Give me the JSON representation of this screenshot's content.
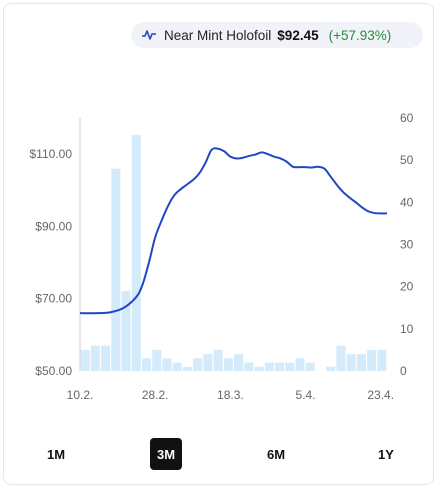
{
  "legend": {
    "label": "Near Mint Holofoil",
    "price": "$92.45",
    "change": "(+57.93%)",
    "icon": "line-chart-icon"
  },
  "range_tabs": [
    {
      "label": "1M",
      "active": false
    },
    {
      "label": "3M",
      "active": true
    },
    {
      "label": "6M",
      "active": false
    },
    {
      "label": "1Y",
      "active": false
    }
  ],
  "colors": {
    "line": "#2147c2",
    "bars": "#d3ebfa",
    "change_positive": "#2b8a3e",
    "active_tab": "#111111"
  },
  "chart_data": {
    "type": "line",
    "title": "",
    "xlabel": "",
    "ylabel": "",
    "x_tick_labels": [
      "10.2.",
      "28.2.",
      "18.3.",
      "5.4.",
      "23.4."
    ],
    "y_left": {
      "ticks": [
        "$50.00",
        "$70.00",
        "$90.00",
        "$110.00"
      ],
      "values": [
        50,
        70,
        90,
        110
      ],
      "range": [
        50,
        120
      ]
    },
    "y_right": {
      "ticks": [
        "0",
        "10",
        "20",
        "30",
        "40",
        "50",
        "60"
      ],
      "values": [
        0,
        10,
        20,
        30,
        40,
        50,
        60
      ],
      "range": [
        0,
        60
      ]
    },
    "series": [
      {
        "type": "line",
        "axis": "left",
        "points": [
          [
            0,
            66.0
          ],
          [
            3,
            66.0
          ],
          [
            5,
            66.3
          ],
          [
            7,
            67.5
          ],
          [
            9,
            70.5
          ],
          [
            10,
            74
          ],
          [
            11,
            80
          ],
          [
            12,
            87
          ],
          [
            13,
            91.5
          ],
          [
            14,
            95.5
          ],
          [
            15,
            98.5
          ],
          [
            16,
            100.2
          ],
          [
            17,
            101.5
          ],
          [
            18,
            102.8
          ],
          [
            19,
            104.6
          ],
          [
            20,
            107.5
          ],
          [
            21,
            111.2
          ],
          [
            22,
            111.5
          ],
          [
            23,
            110.8
          ],
          [
            24,
            109.3
          ],
          [
            25,
            108.8
          ],
          [
            26,
            109.0
          ],
          [
            27,
            109.5
          ],
          [
            28,
            109.9
          ],
          [
            29,
            110.5
          ],
          [
            30,
            110.0
          ],
          [
            31,
            109.3
          ],
          [
            32,
            108.8
          ],
          [
            33,
            107.9
          ],
          [
            34,
            106.5
          ],
          [
            35,
            106.4
          ],
          [
            36,
            106.4
          ],
          [
            37,
            106.3
          ],
          [
            38,
            106.5
          ],
          [
            39,
            106.0
          ],
          [
            40,
            103.8
          ],
          [
            41,
            101.5
          ],
          [
            42,
            99.5
          ],
          [
            43,
            98.0
          ],
          [
            44,
            96.7
          ],
          [
            45,
            95.3
          ],
          [
            46,
            94.2
          ],
          [
            47,
            93.7
          ],
          [
            48,
            93.6
          ],
          [
            49,
            93.6
          ]
        ]
      },
      {
        "type": "bar",
        "axis": "right",
        "values": [
          5,
          6,
          6,
          48,
          19,
          56,
          3,
          5,
          3,
          2,
          1,
          3,
          4,
          5,
          3,
          4,
          2,
          1,
          2,
          2,
          2,
          3,
          2,
          0,
          1,
          6,
          4,
          4,
          5,
          5
        ]
      }
    ],
    "x_range": [
      0,
      49
    ],
    "x_tick_positions": [
      0,
      12,
      24,
      36,
      48
    ],
    "grid": false
  }
}
